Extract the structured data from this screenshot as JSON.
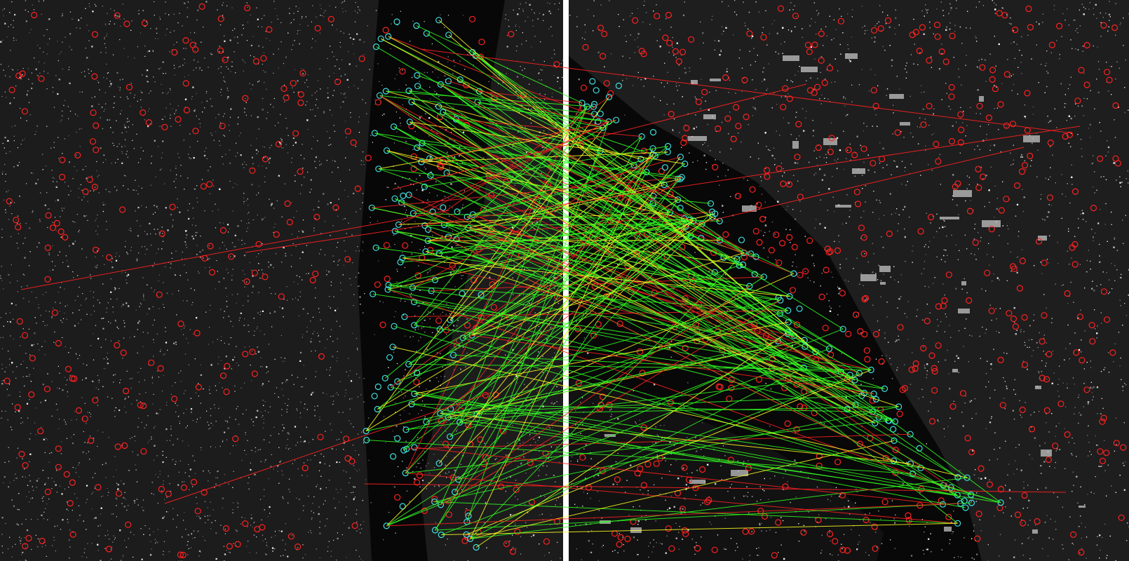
{
  "image": {
    "kind": "sar-image-feature-matching",
    "panels": [
      "left-sar-image",
      "right-sar-image"
    ],
    "divider_color": "#ffffff",
    "background_color": "#050505"
  },
  "markers": {
    "keypoint_circle_color": "#ff2020",
    "matched_keypoint_circle_color": "#40e0e0"
  },
  "match_lines": {
    "correct_match_color": "#30ff20",
    "near_match_color": "#ffff20",
    "outlier_match_color": "#ff2020"
  }
}
